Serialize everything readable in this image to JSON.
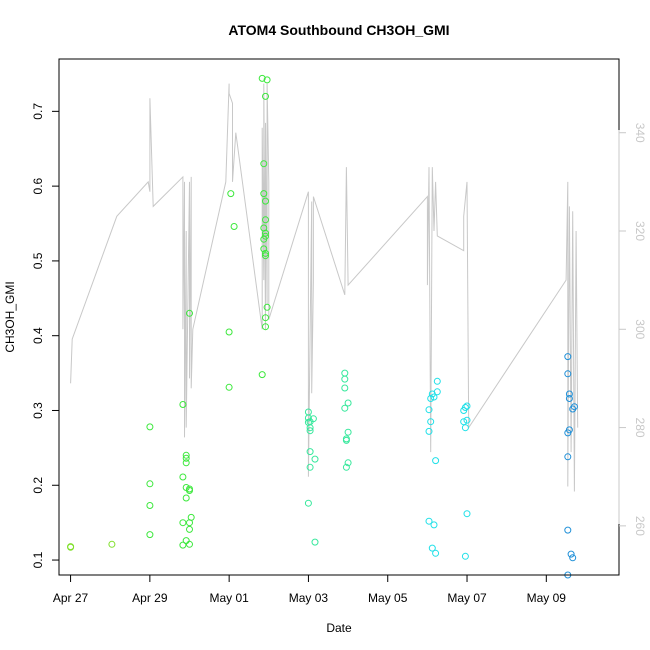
{
  "chart_data": {
    "type": "scatter",
    "title": "ATOM4 Southbound CH3OH_GMI",
    "xlabel": "Date",
    "ylabel": "CH3OH_GMI",
    "xlim": [
      "2018-04-26T17:00",
      "2018-05-10T20:00"
    ],
    "ylim": [
      0.08,
      0.77
    ],
    "x_ticks": [
      "2018-04-27",
      "2018-04-29",
      "2018-05-01",
      "2018-05-03",
      "2018-05-05",
      "2018-05-07",
      "2018-05-09"
    ],
    "x_tick_labels": [
      "Apr 27",
      "Apr 29",
      "May 01",
      "May 03",
      "May 05",
      "May 07",
      "May 09"
    ],
    "y_ticks": [
      0.1,
      0.2,
      0.3,
      0.4,
      0.5,
      0.6,
      0.7
    ],
    "y_tick_labels": [
      "0.1",
      "0.2",
      "0.3",
      "0.4",
      "0.5",
      "0.6",
      "0.7"
    ],
    "secondary_axis": {
      "ylim": [
        250,
        355
      ],
      "ticks": [
        260,
        280,
        300,
        320,
        340
      ],
      "tick_labels": [
        "260",
        "280",
        "300",
        "320",
        "340"
      ],
      "color": "#c8c8c8"
    },
    "grid": false,
    "legend": "none",
    "series": [
      {
        "color": "#80e02c",
        "points": [
          [
            "2018-04-27T00:00",
            0.118
          ],
          [
            "2018-04-27T00:00",
            0.117
          ],
          [
            "2018-04-28T01:00",
            0.121
          ]
        ]
      },
      {
        "color": "#3ce83c",
        "points": [
          [
            "2018-04-29T00:00",
            0.278
          ],
          [
            "2018-04-29T00:00",
            0.202
          ],
          [
            "2018-04-29T00:00",
            0.173
          ],
          [
            "2018-04-29T00:00",
            0.134
          ],
          [
            "2018-04-29T20:00",
            0.308
          ],
          [
            "2018-04-29T20:00",
            0.211
          ],
          [
            "2018-04-29T20:00",
            0.15
          ],
          [
            "2018-04-29T20:00",
            0.12
          ],
          [
            "2018-04-29T22:00",
            0.24
          ],
          [
            "2018-04-29T22:00",
            0.236
          ],
          [
            "2018-04-29T22:00",
            0.23
          ],
          [
            "2018-04-29T22:00",
            0.197
          ],
          [
            "2018-04-29T22:00",
            0.183
          ],
          [
            "2018-04-29T22:00",
            0.126
          ],
          [
            "2018-04-30T00:00",
            0.43
          ],
          [
            "2018-04-30T00:00",
            0.195
          ],
          [
            "2018-04-30T00:00",
            0.193
          ],
          [
            "2018-04-30T00:00",
            0.15
          ],
          [
            "2018-04-30T00:00",
            0.141
          ],
          [
            "2018-04-30T00:00",
            0.121
          ],
          [
            "2018-04-30T01:00",
            0.157
          ],
          [
            "2018-05-01T00:00",
            0.405
          ],
          [
            "2018-05-01T00:00",
            0.331
          ],
          [
            "2018-05-01T01:00",
            0.59
          ],
          [
            "2018-05-01T03:00",
            0.546
          ],
          [
            "2018-05-01T20:00",
            0.744
          ],
          [
            "2018-05-01T20:00",
            0.348
          ],
          [
            "2018-05-01T21:00",
            0.59
          ],
          [
            "2018-05-01T21:00",
            0.63
          ],
          [
            "2018-05-01T21:00",
            0.544
          ],
          [
            "2018-05-01T21:00",
            0.529
          ],
          [
            "2018-05-01T21:00",
            0.516
          ],
          [
            "2018-05-01T22:00",
            0.72
          ],
          [
            "2018-05-01T22:00",
            0.58
          ],
          [
            "2018-05-01T22:00",
            0.555
          ],
          [
            "2018-05-01T22:00",
            0.537
          ],
          [
            "2018-05-01T22:00",
            0.533
          ],
          [
            "2018-05-01T22:00",
            0.51
          ],
          [
            "2018-05-01T22:00",
            0.507
          ],
          [
            "2018-05-01T22:00",
            0.424
          ],
          [
            "2018-05-01T22:00",
            0.412
          ],
          [
            "2018-05-01T23:00",
            0.742
          ],
          [
            "2018-05-01T23:00",
            0.438
          ]
        ]
      },
      {
        "color": "#36e89c",
        "points": [
          [
            "2018-05-03T00:00",
            0.298
          ],
          [
            "2018-05-03T00:00",
            0.29
          ],
          [
            "2018-05-03T00:00",
            0.284
          ],
          [
            "2018-05-03T01:00",
            0.285
          ],
          [
            "2018-05-03T01:00",
            0.277
          ],
          [
            "2018-05-03T01:00",
            0.273
          ],
          [
            "2018-05-03T01:00",
            0.245
          ],
          [
            "2018-05-03T01:00",
            0.224
          ],
          [
            "2018-05-03T00:00",
            0.176
          ],
          [
            "2018-05-03T03:00",
            0.289
          ],
          [
            "2018-05-03T04:00",
            0.235
          ],
          [
            "2018-05-03T04:00",
            0.124
          ],
          [
            "2018-05-03T22:00",
            0.35
          ],
          [
            "2018-05-03T22:00",
            0.342
          ],
          [
            "2018-05-03T22:00",
            0.33
          ],
          [
            "2018-05-03T22:00",
            0.303
          ],
          [
            "2018-05-03T23:00",
            0.262
          ],
          [
            "2018-05-03T23:00",
            0.26
          ],
          [
            "2018-05-04T00:00",
            0.31
          ],
          [
            "2018-05-04T00:00",
            0.271
          ],
          [
            "2018-05-04T00:00",
            0.23
          ],
          [
            "2018-05-03T23:00",
            0.224
          ]
        ]
      },
      {
        "color": "#20e0e8",
        "points": [
          [
            "2018-05-06T01:00",
            0.301
          ],
          [
            "2018-05-06T01:00",
            0.272
          ],
          [
            "2018-05-06T01:00",
            0.152
          ],
          [
            "2018-05-06T02:00",
            0.316
          ],
          [
            "2018-05-06T02:00",
            0.285
          ],
          [
            "2018-05-06T03:00",
            0.322
          ],
          [
            "2018-05-06T03:00",
            0.116
          ],
          [
            "2018-05-06T04:00",
            0.318
          ],
          [
            "2018-05-06T04:00",
            0.147
          ],
          [
            "2018-05-06T05:00",
            0.233
          ],
          [
            "2018-05-06T05:00",
            0.109
          ],
          [
            "2018-05-06T06:00",
            0.339
          ],
          [
            "2018-05-06T06:00",
            0.325
          ],
          [
            "2018-05-06T22:00",
            0.3
          ],
          [
            "2018-05-06T22:00",
            0.285
          ],
          [
            "2018-05-06T23:00",
            0.304
          ],
          [
            "2018-05-06T23:00",
            0.277
          ],
          [
            "2018-05-06T23:00",
            0.105
          ],
          [
            "2018-05-07T00:00",
            0.306
          ],
          [
            "2018-05-07T00:00",
            0.287
          ],
          [
            "2018-05-07T00:00",
            0.162
          ]
        ]
      },
      {
        "color": "#2090d8",
        "points": [
          [
            "2018-05-09T13:00",
            0.372
          ],
          [
            "2018-05-09T13:00",
            0.349
          ],
          [
            "2018-05-09T13:00",
            0.27
          ],
          [
            "2018-05-09T13:00",
            0.238
          ],
          [
            "2018-05-09T13:00",
            0.14
          ],
          [
            "2018-05-09T13:00",
            0.08
          ],
          [
            "2018-05-09T14:00",
            0.322
          ],
          [
            "2018-05-09T14:00",
            0.316
          ],
          [
            "2018-05-09T14:00",
            0.274
          ],
          [
            "2018-05-09T15:00",
            0.108
          ],
          [
            "2018-05-09T16:00",
            0.302
          ],
          [
            "2018-05-09T16:00",
            0.103
          ],
          [
            "2018-05-09T17:00",
            0.305
          ]
        ]
      },
      {
        "color": "#c8c8c8",
        "axis": "secondary",
        "style": "line",
        "points": [
          [
            "2018-04-27T00:00",
            289
          ],
          [
            "2018-04-27T01:00",
            298
          ],
          [
            "2018-04-28T04:00",
            323
          ],
          [
            "2018-04-28T23:00",
            330
          ],
          [
            "2018-04-29T00:00",
            328
          ],
          [
            "2018-04-29T00:00",
            347
          ],
          [
            "2018-04-29T02:00",
            325
          ],
          [
            "2018-04-29T20:00",
            331
          ],
          [
            "2018-04-29T20:00",
            300
          ],
          [
            "2018-04-29T21:00",
            330
          ],
          [
            "2018-04-29T21:00",
            278
          ],
          [
            "2018-04-29T22:00",
            320
          ],
          [
            "2018-04-29T22:00",
            280
          ],
          [
            "2018-04-30T00:00",
            330
          ],
          [
            "2018-04-30T00:00",
            290
          ],
          [
            "2018-04-30T01:00",
            331
          ],
          [
            "2018-04-30T01:00",
            288
          ],
          [
            "2018-04-30T02:00",
            300
          ],
          [
            "2018-04-30T22:00",
            330
          ],
          [
            "2018-05-01T00:00",
            350
          ],
          [
            "2018-05-01T00:00",
            348
          ],
          [
            "2018-05-01T02:00",
            346
          ],
          [
            "2018-05-01T02:00",
            330
          ],
          [
            "2018-05-01T04:00",
            340
          ],
          [
            "2018-05-01T20:00",
            300
          ],
          [
            "2018-05-01T20:00",
            341
          ],
          [
            "2018-05-01T21:00",
            310
          ],
          [
            "2018-05-01T21:00",
            350
          ],
          [
            "2018-05-01T22:00",
            300
          ],
          [
            "2018-05-01T22:00",
            342
          ],
          [
            "2018-05-01T23:00",
            305
          ],
          [
            "2018-05-01T23:00",
            350
          ],
          [
            "2018-05-02T00:00",
            330
          ],
          [
            "2018-05-02T00:00",
            302
          ],
          [
            "2018-05-03T00:00",
            328
          ],
          [
            "2018-05-03T00:00",
            270
          ],
          [
            "2018-05-03T02:00",
            326
          ],
          [
            "2018-05-03T02:00",
            287
          ],
          [
            "2018-05-03T03:00",
            310
          ],
          [
            "2018-05-03T03:00",
            327
          ],
          [
            "2018-05-03T22:00",
            307
          ],
          [
            "2018-05-03T23:00",
            333
          ],
          [
            "2018-05-04T00:00",
            309
          ],
          [
            "2018-05-06T00:00",
            327
          ],
          [
            "2018-05-06T00:00",
            309
          ],
          [
            "2018-05-06T01:00",
            333
          ],
          [
            "2018-05-06T02:00",
            275
          ],
          [
            "2018-05-06T03:00",
            333
          ],
          [
            "2018-05-06T04:00",
            320
          ],
          [
            "2018-05-06T05:00",
            330
          ],
          [
            "2018-05-06T06:00",
            319
          ],
          [
            "2018-05-06T22:00",
            316
          ],
          [
            "2018-05-06T22:00",
            323
          ],
          [
            "2018-05-07T00:00",
            330
          ],
          [
            "2018-05-07T01:00",
            280
          ],
          [
            "2018-05-09T12:00",
            310
          ],
          [
            "2018-05-09T13:00",
            330
          ],
          [
            "2018-05-09T13:00",
            268
          ],
          [
            "2018-05-09T14:00",
            325
          ],
          [
            "2018-05-09T15:00",
            275
          ],
          [
            "2018-05-09T16:00",
            324
          ],
          [
            "2018-05-09T17:00",
            267
          ],
          [
            "2018-05-09T18:00",
            320
          ],
          [
            "2018-05-09T19:00",
            280
          ]
        ]
      }
    ]
  }
}
